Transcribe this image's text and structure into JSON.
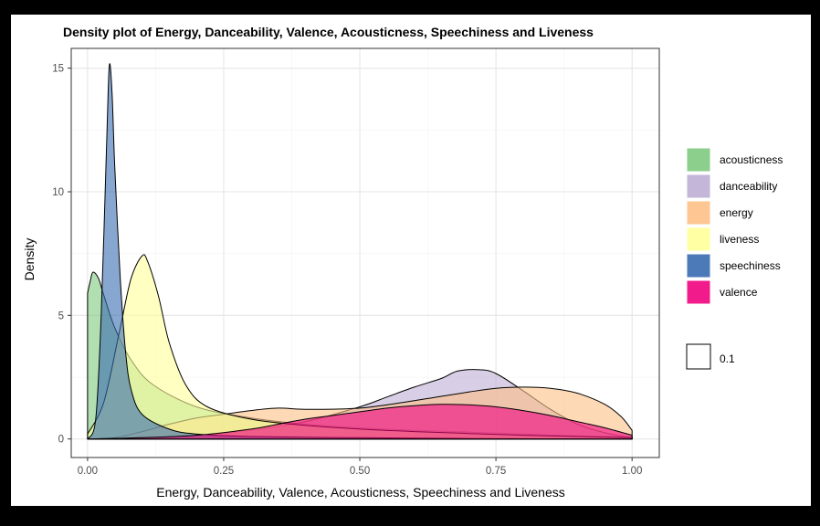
{
  "chart_data": {
    "type": "area",
    "title": "Density plot of Energy, Danceability, Valence, Acousticness, Speechiness and Liveness",
    "xlabel": "Energy, Danceability, Valence, Acousticness, Speechiness and Liveness",
    "ylabel": "Density",
    "xlim": [
      -0.03,
      1.05
    ],
    "ylim": [
      -0.75,
      15.8
    ],
    "x_ticks": [
      "0.00",
      "0.25",
      "0.50",
      "0.75",
      "1.00"
    ],
    "y_ticks": [
      "0",
      "5",
      "10",
      "15"
    ],
    "grid": true,
    "legend_position": "right",
    "alpha_legend": {
      "label": "0.1"
    },
    "series": [
      {
        "name": "acousticness",
        "color": "#7fc97f",
        "points": [
          [
            0.0,
            5.9
          ],
          [
            0.005,
            6.4
          ],
          [
            0.01,
            6.75
          ],
          [
            0.02,
            6.5
          ],
          [
            0.03,
            5.8
          ],
          [
            0.05,
            4.5
          ],
          [
            0.08,
            3.2
          ],
          [
            0.12,
            2.2
          ],
          [
            0.2,
            1.3
          ],
          [
            0.3,
            0.85
          ],
          [
            0.4,
            0.6
          ],
          [
            0.5,
            0.45
          ],
          [
            0.6,
            0.35
          ],
          [
            0.7,
            0.28
          ],
          [
            0.8,
            0.2
          ],
          [
            0.9,
            0.12
          ],
          [
            1.0,
            0.08
          ]
        ]
      },
      {
        "name": "danceability",
        "color": "#beaed4",
        "points": [
          [
            0.0,
            0.0
          ],
          [
            0.05,
            0.02
          ],
          [
            0.1,
            0.05
          ],
          [
            0.2,
            0.15
          ],
          [
            0.3,
            0.35
          ],
          [
            0.4,
            0.7
          ],
          [
            0.5,
            1.3
          ],
          [
            0.55,
            1.7
          ],
          [
            0.6,
            2.1
          ],
          [
            0.65,
            2.45
          ],
          [
            0.68,
            2.75
          ],
          [
            0.72,
            2.8
          ],
          [
            0.75,
            2.65
          ],
          [
            0.8,
            1.95
          ],
          [
            0.85,
            1.2
          ],
          [
            0.9,
            0.6
          ],
          [
            0.95,
            0.25
          ],
          [
            1.0,
            0.05
          ]
        ]
      },
      {
        "name": "energy",
        "color": "#fdc086",
        "points": [
          [
            0.0,
            0.0
          ],
          [
            0.05,
            0.05
          ],
          [
            0.1,
            0.3
          ],
          [
            0.15,
            0.6
          ],
          [
            0.2,
            0.85
          ],
          [
            0.25,
            1.0
          ],
          [
            0.3,
            1.15
          ],
          [
            0.35,
            1.25
          ],
          [
            0.4,
            1.2
          ],
          [
            0.5,
            1.25
          ],
          [
            0.6,
            1.55
          ],
          [
            0.7,
            1.9
          ],
          [
            0.75,
            2.05
          ],
          [
            0.8,
            2.1
          ],
          [
            0.85,
            2.05
          ],
          [
            0.9,
            1.85
          ],
          [
            0.95,
            1.4
          ],
          [
            0.98,
            0.9
          ],
          [
            1.0,
            0.35
          ]
        ]
      },
      {
        "name": "liveness",
        "color": "#ffff99",
        "points": [
          [
            0.0,
            0.2
          ],
          [
            0.03,
            1.5
          ],
          [
            0.06,
            4.5
          ],
          [
            0.08,
            6.5
          ],
          [
            0.1,
            7.4
          ],
          [
            0.11,
            7.2
          ],
          [
            0.13,
            5.8
          ],
          [
            0.15,
            3.9
          ],
          [
            0.18,
            2.2
          ],
          [
            0.22,
            1.3
          ],
          [
            0.3,
            0.8
          ],
          [
            0.4,
            0.55
          ],
          [
            0.5,
            0.4
          ],
          [
            0.6,
            0.3
          ],
          [
            0.7,
            0.22
          ],
          [
            0.8,
            0.15
          ],
          [
            0.9,
            0.1
          ],
          [
            1.0,
            0.05
          ]
        ]
      },
      {
        "name": "speechiness",
        "color": "#386cb0",
        "points": [
          [
            0.0,
            0.0
          ],
          [
            0.015,
            0.8
          ],
          [
            0.025,
            5.0
          ],
          [
            0.035,
            12.0
          ],
          [
            0.04,
            15.1
          ],
          [
            0.045,
            14.0
          ],
          [
            0.05,
            11.0
          ],
          [
            0.06,
            6.5
          ],
          [
            0.07,
            3.5
          ],
          [
            0.08,
            2.0
          ],
          [
            0.1,
            1.0
          ],
          [
            0.15,
            0.4
          ],
          [
            0.2,
            0.2
          ],
          [
            0.3,
            0.1
          ],
          [
            0.5,
            0.05
          ],
          [
            0.7,
            0.02
          ],
          [
            1.0,
            0.0
          ]
        ]
      },
      {
        "name": "valence",
        "color": "#f0027f",
        "points": [
          [
            0.0,
            0.0
          ],
          [
            0.1,
            0.05
          ],
          [
            0.2,
            0.15
          ],
          [
            0.3,
            0.4
          ],
          [
            0.35,
            0.6
          ],
          [
            0.4,
            0.8
          ],
          [
            0.45,
            0.95
          ],
          [
            0.5,
            1.1
          ],
          [
            0.55,
            1.25
          ],
          [
            0.6,
            1.35
          ],
          [
            0.65,
            1.4
          ],
          [
            0.7,
            1.38
          ],
          [
            0.75,
            1.3
          ],
          [
            0.8,
            1.15
          ],
          [
            0.85,
            0.95
          ],
          [
            0.9,
            0.7
          ],
          [
            0.95,
            0.45
          ],
          [
            1.0,
            0.15
          ]
        ]
      }
    ]
  }
}
